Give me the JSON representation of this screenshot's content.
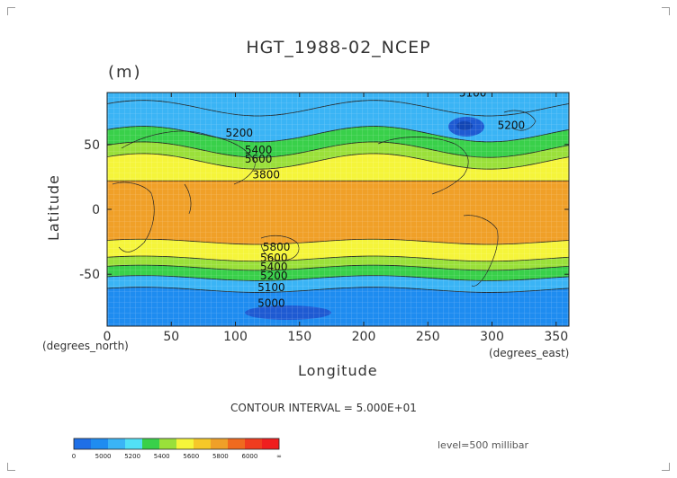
{
  "chart_data": {
    "type": "contour-map",
    "title": "HGT_1988-02_NCEP",
    "units_label": "(m)",
    "xlabel": "Longitude",
    "ylabel": "Latitude",
    "x_units": "(degrees_east)",
    "y_units": "(degrees_north)",
    "xlim": [
      0,
      360
    ],
    "ylim": [
      -90,
      90
    ],
    "x_ticks": [
      0,
      50,
      100,
      150,
      200,
      250,
      300,
      350
    ],
    "y_ticks": [
      -50,
      0,
      50
    ],
    "x_tick_labels": [
      "0",
      "50",
      "100",
      "150",
      "200",
      "250",
      "300",
      "350"
    ],
    "y_tick_labels": [
      "-50",
      "0",
      "50"
    ],
    "contour_interval_text": "CONTOUR INTERVAL = 5.000E+01",
    "level_text": "level=500 millibar",
    "contour_annotations": [
      {
        "text": "5100",
        "lon": 285,
        "lat": 87
      },
      {
        "text": "5200",
        "lon": 315,
        "lat": 62
      },
      {
        "text": "5200",
        "lon": 103,
        "lat": 56
      },
      {
        "text": "5400",
        "lon": 118,
        "lat": 43
      },
      {
        "text": "5600",
        "lon": 118,
        "lat": 36
      },
      {
        "text": "3800",
        "lon": 124,
        "lat": 24
      },
      {
        "text": "5800",
        "lon": 132,
        "lat": -32
      },
      {
        "text": "5600",
        "lon": 130,
        "lat": -40
      },
      {
        "text": "5400",
        "lon": 130,
        "lat": -47
      },
      {
        "text": "5200",
        "lon": 130,
        "lat": -54
      },
      {
        "text": "5100",
        "lon": 128,
        "lat": -63
      },
      {
        "text": "5000",
        "lon": 128,
        "lat": -75
      }
    ],
    "bands": [
      {
        "lat_top": 90,
        "lat_bottom": 78,
        "level": "5200-5400"
      },
      {
        "lat_top": 78,
        "lat_bottom": 58,
        "level": "5200-5400"
      },
      {
        "lat_top": 58,
        "lat_bottom": 46,
        "level": "5400-5600"
      },
      {
        "lat_top": 46,
        "lat_bottom": 37,
        "level": "5600-5800"
      },
      {
        "lat_top": 37,
        "lat_bottom": 22,
        "level": "5800-6000"
      },
      {
        "lat_top": 22,
        "lat_bottom": -25,
        "level": "6000+"
      },
      {
        "lat_top": -25,
        "lat_bottom": -38,
        "level": "5800-6000"
      },
      {
        "lat_top": -38,
        "lat_bottom": -45,
        "level": "5600-5800"
      },
      {
        "lat_top": -45,
        "lat_bottom": -53,
        "level": "5400-5600"
      },
      {
        "lat_top": -53,
        "lat_bottom": -62,
        "level": "5200-5400"
      },
      {
        "lat_top": -62,
        "lat_bottom": -90,
        "level": "5000-5200"
      }
    ],
    "colorbar": {
      "labels": [
        "0",
        "5000",
        "5200",
        "5400",
        "5600",
        "5800",
        "6000",
        "∞"
      ],
      "colors": [
        "#1e6fe6",
        "#1e8cf0",
        "#3ab4f5",
        "#52e0f5",
        "#39d04a",
        "#9ae03a",
        "#f5f53a",
        "#f5c828",
        "#f0a028",
        "#f06a1e",
        "#f03c1e",
        "#f01e1e"
      ]
    },
    "colors": {
      "deep_blue": "#1e6fe6",
      "mid_blue": "#1e8cf0",
      "light_blue": "#3ab4f5",
      "cyan": "#52e0f5",
      "green": "#39d04a",
      "yellow_green": "#9ae03a",
      "yellow": "#f5f53a",
      "orange": "#f0a028"
    }
  }
}
